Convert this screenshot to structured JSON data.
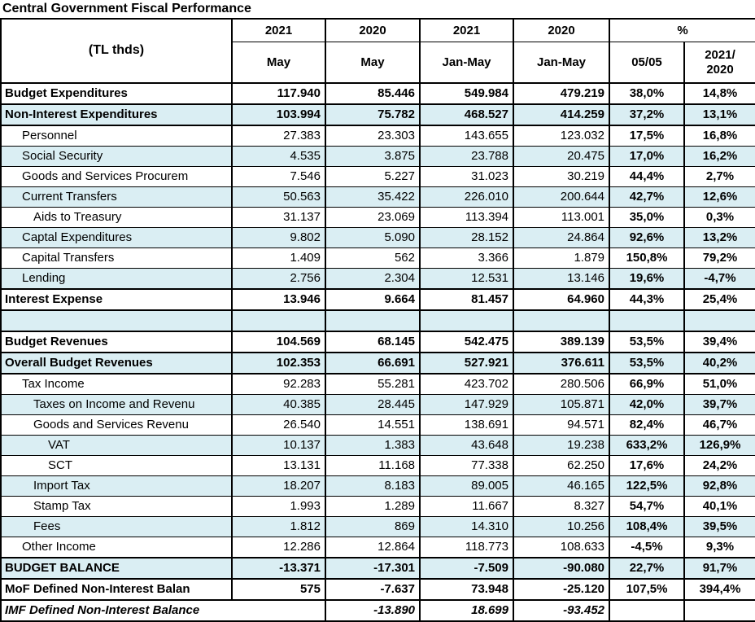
{
  "title": "Central Government Fiscal Performance",
  "colors": {
    "shaded_row": "#DAEEF3",
    "border": "#000000",
    "background": "#FFFFFF",
    "text": "#000000"
  },
  "header": {
    "unit_label": "(TL thds)",
    "col_groups": [
      "2021",
      "2020",
      "2021",
      "2020"
    ],
    "percent_group_label": "%",
    "sub_headers": [
      "May",
      "May",
      "Jan-May",
      "Jan-May",
      "05/05",
      "2021/\n2020"
    ]
  },
  "table": {
    "rows": [
      {
        "label": "Budget Expenditures",
        "indent": 0,
        "bold": true,
        "italic": false,
        "shaded": false,
        "thick_top": true,
        "label_colspan": 1,
        "values": [
          "117.940",
          "85.446",
          "549.984",
          "479.219",
          "38,0%",
          "14,8%"
        ]
      },
      {
        "label": "Non-Interest Expenditures",
        "indent": 0,
        "bold": true,
        "italic": false,
        "shaded": true,
        "thick_top": true,
        "label_colspan": 1,
        "values": [
          "103.994",
          "75.782",
          "468.527",
          "414.259",
          "37,2%",
          "13,1%"
        ]
      },
      {
        "label": "Personnel",
        "indent": 1,
        "bold": false,
        "italic": false,
        "shaded": false,
        "thick_top": true,
        "label_colspan": 1,
        "values": [
          "27.383",
          "23.303",
          "143.655",
          "123.032",
          "17,5%",
          "16,8%"
        ]
      },
      {
        "label": "Social Security",
        "indent": 1,
        "bold": false,
        "italic": false,
        "shaded": true,
        "thick_top": false,
        "label_colspan": 1,
        "values": [
          "4.535",
          "3.875",
          "23.788",
          "20.475",
          "17,0%",
          "16,2%"
        ]
      },
      {
        "label": "Goods and Services Procurem",
        "indent": 1,
        "bold": false,
        "italic": false,
        "shaded": false,
        "thick_top": false,
        "label_colspan": 1,
        "values": [
          "7.546",
          "5.227",
          "31.023",
          "30.219",
          "44,4%",
          "2,7%"
        ]
      },
      {
        "label": "Current Transfers",
        "indent": 1,
        "bold": false,
        "italic": false,
        "shaded": true,
        "thick_top": false,
        "label_colspan": 1,
        "values": [
          "50.563",
          "35.422",
          "226.010",
          "200.644",
          "42,7%",
          "12,6%"
        ]
      },
      {
        "label": "Aids to Treasury",
        "indent": 2,
        "bold": false,
        "italic": false,
        "shaded": false,
        "thick_top": false,
        "label_colspan": 1,
        "values": [
          "31.137",
          "23.069",
          "113.394",
          "113.001",
          "35,0%",
          "0,3%"
        ]
      },
      {
        "label": "Captal Expenditures",
        "indent": 1,
        "bold": false,
        "italic": false,
        "shaded": true,
        "thick_top": false,
        "label_colspan": 1,
        "values": [
          "9.802",
          "5.090",
          "28.152",
          "24.864",
          "92,6%",
          "13,2%"
        ]
      },
      {
        "label": "Capital Transfers",
        "indent": 1,
        "bold": false,
        "italic": false,
        "shaded": false,
        "thick_top": false,
        "label_colspan": 1,
        "values": [
          "1.409",
          "562",
          "3.366",
          "1.879",
          "150,8%",
          "79,2%"
        ]
      },
      {
        "label": "Lending",
        "indent": 1,
        "bold": false,
        "italic": false,
        "shaded": true,
        "thick_top": false,
        "label_colspan": 1,
        "values": [
          "2.756",
          "2.304",
          "12.531",
          "13.146",
          "19,6%",
          "-4,7%"
        ]
      },
      {
        "label": "Interest Expense",
        "indent": 0,
        "bold": true,
        "italic": false,
        "shaded": false,
        "thick_top": true,
        "label_colspan": 1,
        "values": [
          "13.946",
          "9.664",
          "81.457",
          "64.960",
          "44,3%",
          "25,4%"
        ]
      },
      {
        "label": "",
        "indent": 0,
        "bold": false,
        "italic": false,
        "shaded": true,
        "thick_top": true,
        "label_colspan": 1,
        "values": [
          "",
          "",
          "",
          "",
          "",
          ""
        ]
      },
      {
        "label": "Budget Revenues",
        "indent": 0,
        "bold": true,
        "italic": false,
        "shaded": false,
        "thick_top": true,
        "label_colspan": 1,
        "values": [
          "104.569",
          "68.145",
          "542.475",
          "389.139",
          "53,5%",
          "39,4%"
        ]
      },
      {
        "label": "Overall Budget Revenues",
        "indent": 0,
        "bold": true,
        "italic": false,
        "shaded": true,
        "thick_top": true,
        "label_colspan": 1,
        "values": [
          "102.353",
          "66.691",
          "527.921",
          "376.611",
          "53,5%",
          "40,2%"
        ]
      },
      {
        "label": "Tax Income",
        "indent": 1,
        "bold": false,
        "italic": false,
        "shaded": false,
        "thick_top": true,
        "label_colspan": 1,
        "values": [
          "92.283",
          "55.281",
          "423.702",
          "280.506",
          "66,9%",
          "51,0%"
        ]
      },
      {
        "label": "Taxes on Income and Revenu",
        "indent": 2,
        "bold": false,
        "italic": false,
        "shaded": true,
        "thick_top": false,
        "label_colspan": 1,
        "values": [
          "40.385",
          "28.445",
          "147.929",
          "105.871",
          "42,0%",
          "39,7%"
        ]
      },
      {
        "label": "Goods and Services Revenu",
        "indent": 2,
        "bold": false,
        "italic": false,
        "shaded": false,
        "thick_top": false,
        "label_colspan": 1,
        "values": [
          "26.540",
          "14.551",
          "138.691",
          "94.571",
          "82,4%",
          "46,7%"
        ]
      },
      {
        "label": "VAT",
        "indent": 3,
        "bold": false,
        "italic": false,
        "shaded": true,
        "thick_top": false,
        "label_colspan": 1,
        "values": [
          "10.137",
          "1.383",
          "43.648",
          "19.238",
          "633,2%",
          "126,9%"
        ]
      },
      {
        "label": "SCT",
        "indent": 3,
        "bold": false,
        "italic": false,
        "shaded": false,
        "thick_top": false,
        "label_colspan": 1,
        "values": [
          "13.131",
          "11.168",
          "77.338",
          "62.250",
          "17,6%",
          "24,2%"
        ]
      },
      {
        "label": "Import Tax",
        "indent": 2,
        "bold": false,
        "italic": false,
        "shaded": true,
        "thick_top": false,
        "label_colspan": 1,
        "values": [
          "18.207",
          "8.183",
          "89.005",
          "46.165",
          "122,5%",
          "92,8%"
        ]
      },
      {
        "label": "Stamp Tax",
        "indent": 2,
        "bold": false,
        "italic": false,
        "shaded": false,
        "thick_top": false,
        "label_colspan": 1,
        "values": [
          "1.993",
          "1.289",
          "11.667",
          "8.327",
          "54,7%",
          "40,1%"
        ]
      },
      {
        "label": "Fees",
        "indent": 2,
        "bold": false,
        "italic": false,
        "shaded": true,
        "thick_top": false,
        "label_colspan": 1,
        "values": [
          "1.812",
          "869",
          "14.310",
          "10.256",
          "108,4%",
          "39,5%"
        ]
      },
      {
        "label": "Other Income",
        "indent": 1,
        "bold": false,
        "italic": false,
        "shaded": false,
        "thick_top": false,
        "label_colspan": 1,
        "values": [
          "12.286",
          "12.864",
          "118.773",
          "108.633",
          "-4,5%",
          "9,3%"
        ]
      },
      {
        "label": "BUDGET BALANCE",
        "indent": 0,
        "bold": true,
        "italic": false,
        "shaded": true,
        "thick_top": true,
        "label_colspan": 1,
        "values": [
          "-13.371",
          "-17.301",
          "-7.509",
          "-90.080",
          "22,7%",
          "91,7%"
        ]
      },
      {
        "label": "MoF Defined Non-Interest Balan",
        "indent": 0,
        "bold": true,
        "italic": false,
        "shaded": false,
        "thick_top": true,
        "label_colspan": 1,
        "values": [
          "575",
          "-7.637",
          "73.948",
          "-25.120",
          "107,5%",
          "394,4%"
        ]
      },
      {
        "label": "IMF Defined Non-Interest Balance",
        "indent": 0,
        "bold": true,
        "italic": true,
        "shaded": false,
        "thick_top": true,
        "label_colspan": 2,
        "values": [
          "-13.890",
          "18.699",
          "-93.452",
          "",
          ""
        ]
      }
    ]
  }
}
